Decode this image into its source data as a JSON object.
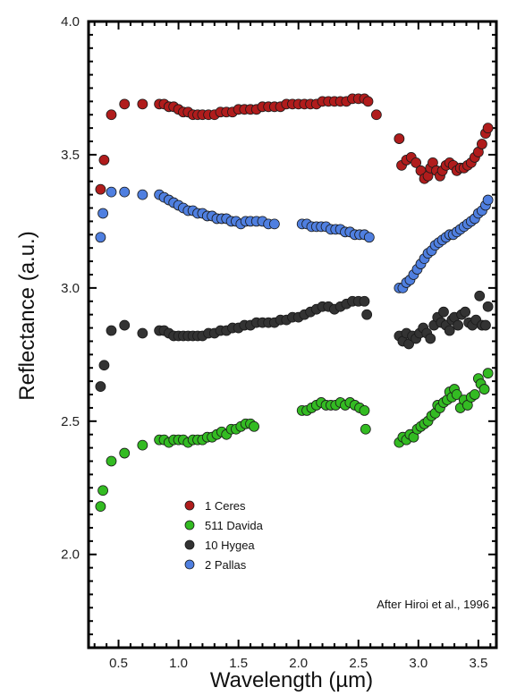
{
  "chart_data": {
    "type": "scatter",
    "title": "",
    "xlabel": "Wavelength (µm)",
    "ylabel": "Reflectance (a.u.)",
    "xlim": [
      0.25,
      3.65
    ],
    "ylim": [
      1.65,
      4.0
    ],
    "xticks": [
      0.5,
      1.0,
      1.5,
      2.0,
      2.5,
      3.0,
      3.5
    ],
    "xtick_labels": [
      "0.5",
      "1.0",
      "1.5",
      "2.0",
      "2.5",
      "3.0",
      "3.5"
    ],
    "yticks": [
      2.0,
      2.5,
      3.0,
      3.5,
      4.0
    ],
    "ytick_labels": [
      "2.0",
      "2.5",
      "3.0",
      "3.5",
      "4.0"
    ],
    "grid": false,
    "legend_position": "bottom-left",
    "annotation": "After Hiroi et al., 1996",
    "series": [
      {
        "name": "1 Ceres",
        "color": "#b01c1c",
        "points": [
          [
            0.35,
            3.37
          ],
          [
            0.38,
            3.48
          ],
          [
            0.44,
            3.65
          ],
          [
            0.55,
            3.69
          ],
          [
            0.7,
            3.69
          ],
          [
            0.84,
            3.69
          ],
          [
            0.88,
            3.69
          ],
          [
            0.92,
            3.68
          ],
          [
            0.96,
            3.68
          ],
          [
            1.0,
            3.67
          ],
          [
            1.04,
            3.66
          ],
          [
            1.08,
            3.66
          ],
          [
            1.12,
            3.65
          ],
          [
            1.16,
            3.65
          ],
          [
            1.2,
            3.65
          ],
          [
            1.25,
            3.65
          ],
          [
            1.3,
            3.65
          ],
          [
            1.35,
            3.66
          ],
          [
            1.4,
            3.66
          ],
          [
            1.45,
            3.66
          ],
          [
            1.5,
            3.67
          ],
          [
            1.55,
            3.67
          ],
          [
            1.6,
            3.67
          ],
          [
            1.65,
            3.67
          ],
          [
            1.7,
            3.68
          ],
          [
            1.75,
            3.68
          ],
          [
            1.8,
            3.68
          ],
          [
            1.85,
            3.68
          ],
          [
            1.9,
            3.69
          ],
          [
            1.95,
            3.69
          ],
          [
            2.0,
            3.69
          ],
          [
            2.05,
            3.69
          ],
          [
            2.1,
            3.69
          ],
          [
            2.15,
            3.69
          ],
          [
            2.2,
            3.7
          ],
          [
            2.25,
            3.7
          ],
          [
            2.3,
            3.7
          ],
          [
            2.35,
            3.7
          ],
          [
            2.4,
            3.7
          ],
          [
            2.45,
            3.71
          ],
          [
            2.5,
            3.71
          ],
          [
            2.55,
            3.71
          ],
          [
            2.58,
            3.7
          ],
          [
            2.65,
            3.65
          ],
          [
            2.84,
            3.56
          ],
          [
            2.86,
            3.46
          ],
          [
            2.9,
            3.48
          ],
          [
            2.94,
            3.49
          ],
          [
            2.98,
            3.47
          ],
          [
            3.02,
            3.44
          ],
          [
            3.05,
            3.41
          ],
          [
            3.08,
            3.42
          ],
          [
            3.1,
            3.45
          ],
          [
            3.12,
            3.47
          ],
          [
            3.15,
            3.44
          ],
          [
            3.18,
            3.42
          ],
          [
            3.2,
            3.44
          ],
          [
            3.23,
            3.46
          ],
          [
            3.26,
            3.47
          ],
          [
            3.29,
            3.46
          ],
          [
            3.32,
            3.44
          ],
          [
            3.35,
            3.45
          ],
          [
            3.38,
            3.45
          ],
          [
            3.41,
            3.46
          ],
          [
            3.44,
            3.47
          ],
          [
            3.47,
            3.49
          ],
          [
            3.5,
            3.51
          ],
          [
            3.53,
            3.54
          ],
          [
            3.56,
            3.58
          ],
          [
            3.58,
            3.6
          ]
        ]
      },
      {
        "name": "511 Davida",
        "color": "#33bb22",
        "points": [
          [
            0.35,
            2.18
          ],
          [
            0.37,
            2.24
          ],
          [
            0.44,
            2.35
          ],
          [
            0.55,
            2.38
          ],
          [
            0.7,
            2.41
          ],
          [
            0.84,
            2.43
          ],
          [
            0.88,
            2.43
          ],
          [
            0.92,
            2.42
          ],
          [
            0.96,
            2.43
          ],
          [
            1.0,
            2.43
          ],
          [
            1.04,
            2.43
          ],
          [
            1.08,
            2.42
          ],
          [
            1.12,
            2.43
          ],
          [
            1.16,
            2.43
          ],
          [
            1.2,
            2.43
          ],
          [
            1.24,
            2.44
          ],
          [
            1.28,
            2.44
          ],
          [
            1.32,
            2.45
          ],
          [
            1.36,
            2.46
          ],
          [
            1.4,
            2.45
          ],
          [
            1.44,
            2.47
          ],
          [
            1.48,
            2.47
          ],
          [
            1.52,
            2.48
          ],
          [
            1.56,
            2.49
          ],
          [
            1.6,
            2.49
          ],
          [
            1.63,
            2.48
          ],
          [
            2.03,
            2.54
          ],
          [
            2.07,
            2.54
          ],
          [
            2.11,
            2.55
          ],
          [
            2.15,
            2.56
          ],
          [
            2.19,
            2.57
          ],
          [
            2.23,
            2.56
          ],
          [
            2.27,
            2.56
          ],
          [
            2.31,
            2.56
          ],
          [
            2.35,
            2.57
          ],
          [
            2.39,
            2.56
          ],
          [
            2.43,
            2.57
          ],
          [
            2.47,
            2.56
          ],
          [
            2.51,
            2.55
          ],
          [
            2.55,
            2.54
          ],
          [
            2.56,
            2.47
          ],
          [
            2.84,
            2.42
          ],
          [
            2.87,
            2.44
          ],
          [
            2.9,
            2.43
          ],
          [
            2.93,
            2.45
          ],
          [
            2.96,
            2.44
          ],
          [
            2.99,
            2.47
          ],
          [
            3.02,
            2.48
          ],
          [
            3.05,
            2.49
          ],
          [
            3.08,
            2.5
          ],
          [
            3.11,
            2.52
          ],
          [
            3.14,
            2.53
          ],
          [
            3.16,
            2.56
          ],
          [
            3.18,
            2.55
          ],
          [
            3.21,
            2.57
          ],
          [
            3.24,
            2.58
          ],
          [
            3.26,
            2.61
          ],
          [
            3.28,
            2.59
          ],
          [
            3.3,
            2.62
          ],
          [
            3.32,
            2.6
          ],
          [
            3.35,
            2.55
          ],
          [
            3.38,
            2.58
          ],
          [
            3.41,
            2.56
          ],
          [
            3.44,
            2.59
          ],
          [
            3.47,
            2.6
          ],
          [
            3.5,
            2.66
          ],
          [
            3.52,
            2.64
          ],
          [
            3.55,
            2.62
          ],
          [
            3.58,
            2.68
          ]
        ]
      },
      {
        "name": "10 Hygea",
        "color": "#333333",
        "points": [
          [
            0.35,
            2.63
          ],
          [
            0.38,
            2.71
          ],
          [
            0.44,
            2.84
          ],
          [
            0.55,
            2.86
          ],
          [
            0.7,
            2.83
          ],
          [
            0.84,
            2.84
          ],
          [
            0.88,
            2.84
          ],
          [
            0.92,
            2.83
          ],
          [
            0.96,
            2.82
          ],
          [
            1.0,
            2.82
          ],
          [
            1.04,
            2.82
          ],
          [
            1.08,
            2.82
          ],
          [
            1.12,
            2.82
          ],
          [
            1.16,
            2.82
          ],
          [
            1.2,
            2.82
          ],
          [
            1.25,
            2.83
          ],
          [
            1.3,
            2.83
          ],
          [
            1.35,
            2.84
          ],
          [
            1.4,
            2.84
          ],
          [
            1.45,
            2.85
          ],
          [
            1.5,
            2.85
          ],
          [
            1.55,
            2.86
          ],
          [
            1.6,
            2.86
          ],
          [
            1.65,
            2.87
          ],
          [
            1.7,
            2.87
          ],
          [
            1.75,
            2.87
          ],
          [
            1.8,
            2.87
          ],
          [
            1.85,
            2.88
          ],
          [
            1.9,
            2.88
          ],
          [
            1.95,
            2.89
          ],
          [
            2.0,
            2.89
          ],
          [
            2.05,
            2.9
          ],
          [
            2.1,
            2.91
          ],
          [
            2.15,
            2.92
          ],
          [
            2.2,
            2.93
          ],
          [
            2.25,
            2.93
          ],
          [
            2.3,
            2.92
          ],
          [
            2.35,
            2.93
          ],
          [
            2.4,
            2.94
          ],
          [
            2.45,
            2.95
          ],
          [
            2.5,
            2.95
          ],
          [
            2.55,
            2.95
          ],
          [
            2.57,
            2.9
          ],
          [
            2.84,
            2.82
          ],
          [
            2.87,
            2.8
          ],
          [
            2.9,
            2.83
          ],
          [
            2.92,
            2.79
          ],
          [
            2.95,
            2.82
          ],
          [
            2.98,
            2.81
          ],
          [
            3.01,
            2.83
          ],
          [
            3.04,
            2.85
          ],
          [
            3.07,
            2.83
          ],
          [
            3.1,
            2.81
          ],
          [
            3.13,
            2.86
          ],
          [
            3.16,
            2.89
          ],
          [
            3.19,
            2.87
          ],
          [
            3.21,
            2.91
          ],
          [
            3.23,
            2.86
          ],
          [
            3.26,
            2.84
          ],
          [
            3.28,
            2.88
          ],
          [
            3.3,
            2.89
          ],
          [
            3.33,
            2.86
          ],
          [
            3.36,
            2.9
          ],
          [
            3.39,
            2.91
          ],
          [
            3.42,
            2.87
          ],
          [
            3.45,
            2.86
          ],
          [
            3.48,
            2.88
          ],
          [
            3.51,
            2.97
          ],
          [
            3.53,
            2.86
          ],
          [
            3.56,
            2.86
          ],
          [
            3.58,
            2.93
          ]
        ]
      },
      {
        "name": "2 Pallas",
        "color": "#4f7fe0",
        "points": [
          [
            0.35,
            3.19
          ],
          [
            0.37,
            3.28
          ],
          [
            0.44,
            3.36
          ],
          [
            0.55,
            3.36
          ],
          [
            0.7,
            3.35
          ],
          [
            0.84,
            3.35
          ],
          [
            0.88,
            3.34
          ],
          [
            0.92,
            3.33
          ],
          [
            0.96,
            3.32
          ],
          [
            1.0,
            3.31
          ],
          [
            1.04,
            3.3
          ],
          [
            1.08,
            3.29
          ],
          [
            1.12,
            3.29
          ],
          [
            1.16,
            3.28
          ],
          [
            1.2,
            3.28
          ],
          [
            1.24,
            3.27
          ],
          [
            1.28,
            3.27
          ],
          [
            1.32,
            3.26
          ],
          [
            1.36,
            3.26
          ],
          [
            1.4,
            3.26
          ],
          [
            1.44,
            3.25
          ],
          [
            1.48,
            3.25
          ],
          [
            1.52,
            3.24
          ],
          [
            1.56,
            3.25
          ],
          [
            1.6,
            3.25
          ],
          [
            1.65,
            3.25
          ],
          [
            1.7,
            3.25
          ],
          [
            1.75,
            3.24
          ],
          [
            1.8,
            3.24
          ],
          [
            2.03,
            3.24
          ],
          [
            2.07,
            3.24
          ],
          [
            2.11,
            3.23
          ],
          [
            2.15,
            3.23
          ],
          [
            2.19,
            3.23
          ],
          [
            2.23,
            3.23
          ],
          [
            2.27,
            3.22
          ],
          [
            2.31,
            3.22
          ],
          [
            2.35,
            3.22
          ],
          [
            2.39,
            3.21
          ],
          [
            2.43,
            3.21
          ],
          [
            2.47,
            3.2
          ],
          [
            2.51,
            3.2
          ],
          [
            2.55,
            3.2
          ],
          [
            2.59,
            3.19
          ],
          [
            2.84,
            3.0
          ],
          [
            2.87,
            3.0
          ],
          [
            2.9,
            3.02
          ],
          [
            2.93,
            3.03
          ],
          [
            2.96,
            3.05
          ],
          [
            2.99,
            3.07
          ],
          [
            3.02,
            3.09
          ],
          [
            3.05,
            3.11
          ],
          [
            3.08,
            3.13
          ],
          [
            3.11,
            3.14
          ],
          [
            3.14,
            3.16
          ],
          [
            3.17,
            3.17
          ],
          [
            3.2,
            3.18
          ],
          [
            3.23,
            3.19
          ],
          [
            3.26,
            3.2
          ],
          [
            3.29,
            3.2
          ],
          [
            3.32,
            3.21
          ],
          [
            3.35,
            3.22
          ],
          [
            3.38,
            3.23
          ],
          [
            3.41,
            3.24
          ],
          [
            3.44,
            3.25
          ],
          [
            3.47,
            3.26
          ],
          [
            3.5,
            3.28
          ],
          [
            3.53,
            3.29
          ],
          [
            3.56,
            3.31
          ],
          [
            3.58,
            3.33
          ]
        ]
      }
    ]
  }
}
